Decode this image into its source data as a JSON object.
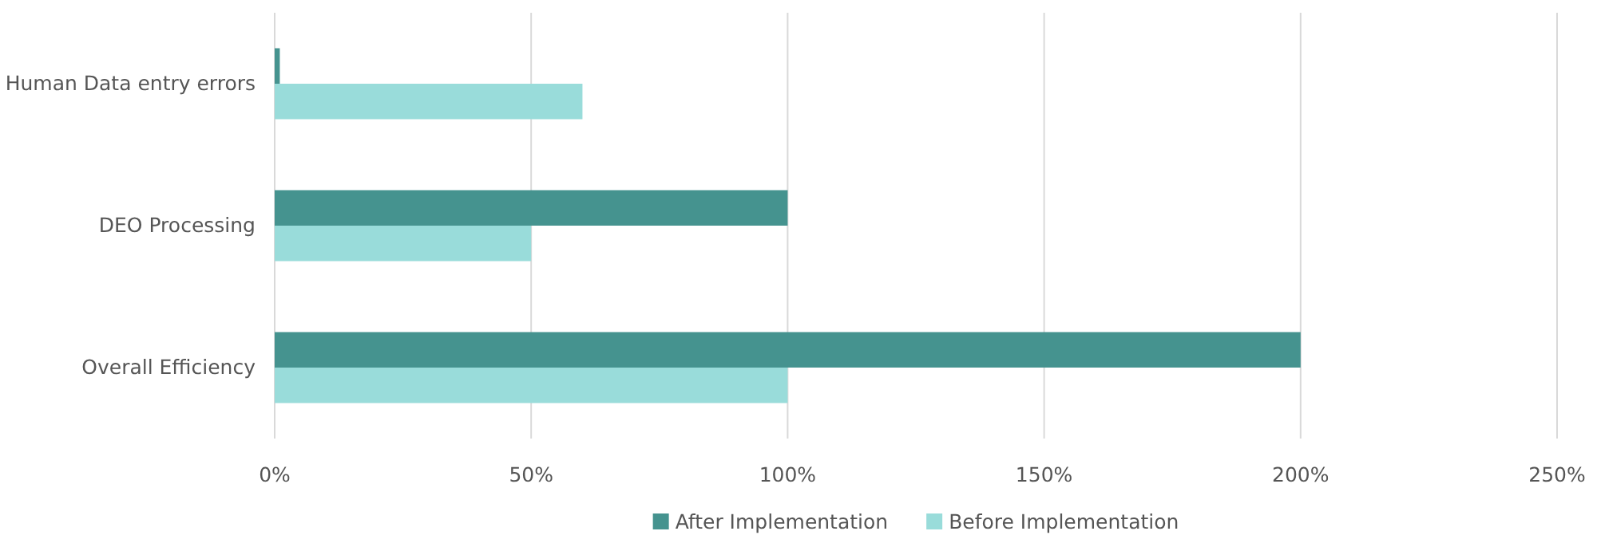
{
  "chart_data": {
    "type": "bar",
    "orientation": "horizontal",
    "categories": [
      "Human Data entry errors",
      "DEO Processing",
      "Overall Efficiency"
    ],
    "series": [
      {
        "name": "After Implementation",
        "color": "#45938f",
        "values": [
          1,
          100,
          200
        ]
      },
      {
        "name": "Before Implementation",
        "color": "#99dcda",
        "values": [
          60,
          50,
          100
        ]
      }
    ],
    "xlim": [
      0,
      250
    ],
    "xticks": [
      {
        "value": 0,
        "label": "0%"
      },
      {
        "value": 50,
        "label": "50%"
      },
      {
        "value": 100,
        "label": "100%"
      },
      {
        "value": 150,
        "label": "150%"
      },
      {
        "value": 200,
        "label": "200%"
      },
      {
        "value": 250,
        "label": "250%"
      }
    ],
    "grid": "x",
    "legend": "bottom"
  }
}
